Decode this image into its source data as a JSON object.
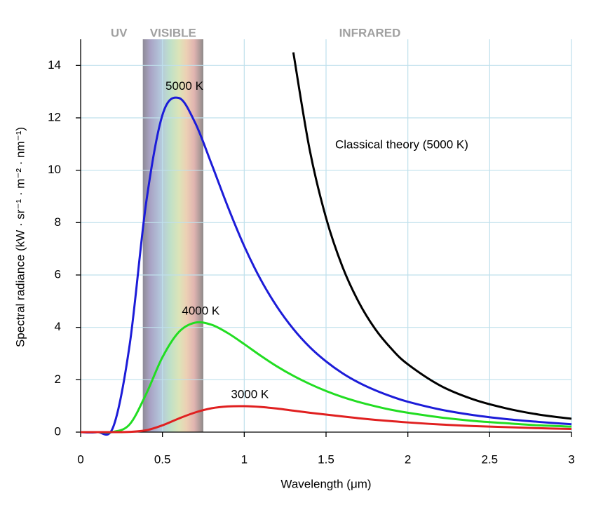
{
  "chart_data": {
    "type": "line",
    "x_label": "Wavelength (μm)",
    "y_label": "Spectral radiance (kW · sr⁻¹ · m⁻² · nm⁻¹)",
    "x": [
      0,
      0.1,
      0.2,
      0.3,
      0.4,
      0.5,
      0.6,
      0.7,
      0.8,
      0.9,
      1.0,
      1.1,
      1.2,
      1.3,
      1.4,
      1.5,
      1.6,
      1.7,
      1.8,
      1.9,
      2.0,
      2.2,
      2.4,
      2.6,
      2.8,
      3.0
    ],
    "series": [
      {
        "name": "5000 K",
        "color": "#1c1cd8",
        "values": [
          0,
          0,
          0.21,
          3.35,
          8.74,
          12.11,
          12.76,
          11.81,
          10.24,
          8.6,
          7.1,
          5.83,
          4.79,
          3.94,
          3.25,
          2.7,
          2.25,
          1.89,
          1.6,
          1.36,
          1.16,
          0.86,
          0.65,
          0.5,
          0.39,
          0.3
        ]
      },
      {
        "name": "4000 K",
        "color": "#22dd22",
        "values": [
          0,
          0,
          0.01,
          0.3,
          1.45,
          2.86,
          3.82,
          4.18,
          4.1,
          3.78,
          3.36,
          2.92,
          2.51,
          2.15,
          1.84,
          1.57,
          1.34,
          1.15,
          0.99,
          0.85,
          0.74,
          0.56,
          0.43,
          0.34,
          0.26,
          0.21
        ]
      },
      {
        "name": "3000 K",
        "color": "#e02020",
        "values": [
          0,
          0,
          0,
          0.01,
          0.07,
          0.26,
          0.52,
          0.75,
          0.91,
          0.98,
          0.99,
          0.96,
          0.9,
          0.82,
          0.74,
          0.67,
          0.6,
          0.53,
          0.47,
          0.42,
          0.37,
          0.29,
          0.23,
          0.19,
          0.15,
          0.12
        ]
      },
      {
        "name": "Classical theory (5000 K)",
        "color": "#000000",
        "values": [
          null,
          null,
          null,
          null,
          null,
          null,
          null,
          null,
          null,
          null,
          null,
          null,
          null,
          14.5,
          10.78,
          8.18,
          6.32,
          4.96,
          3.94,
          3.18,
          2.59,
          1.77,
          1.25,
          0.91,
          0.67,
          0.51
        ]
      }
    ],
    "visible_band": [
      0.38,
      0.75
    ],
    "region_labels": [
      "UV",
      "VISIBLE",
      "INFRARED"
    ],
    "xlim": [
      0,
      3
    ],
    "ylim": [
      0,
      15
    ],
    "xticks": [
      0,
      0.5,
      1,
      1.5,
      2,
      2.5,
      3
    ],
    "yticks": [
      0,
      2,
      4,
      6,
      8,
      10,
      12,
      14
    ],
    "grid": true
  }
}
